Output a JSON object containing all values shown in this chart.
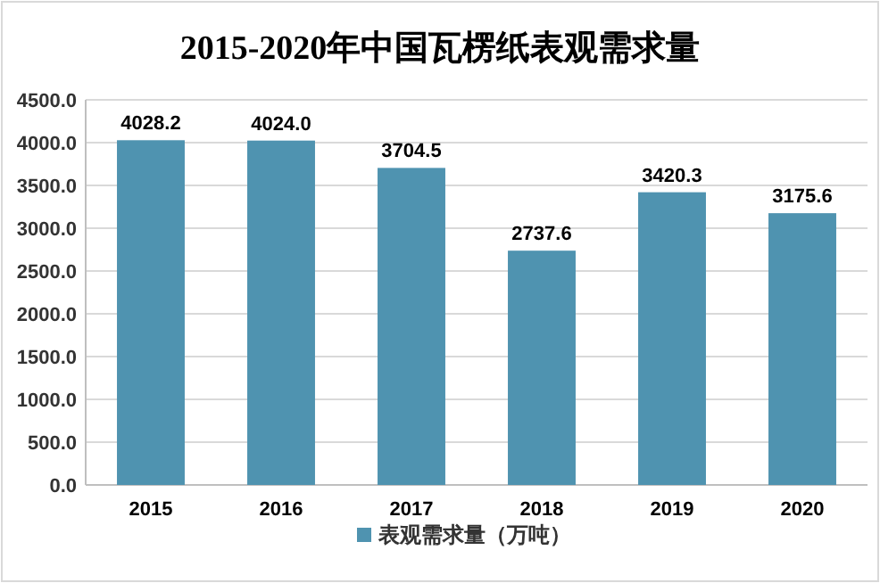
{
  "chart_data": {
    "type": "bar",
    "title": "2015-2020年中国瓦楞纸表观需求量",
    "categories": [
      "2015",
      "2016",
      "2017",
      "2018",
      "2019",
      "2020"
    ],
    "series": [
      {
        "name": "表观需求量（万吨）",
        "color": "#4f93b0",
        "values": [
          4028.2,
          4024.0,
          3704.5,
          2737.6,
          3420.3,
          3175.6
        ]
      }
    ],
    "value_labels": [
      "4028.2",
      "4024.0",
      "3704.5",
      "2737.6",
      "3420.3",
      "3175.6"
    ],
    "ylim": [
      0,
      4500
    ],
    "yticks": [
      {
        "value": 0,
        "label": "0.0"
      },
      {
        "value": 500,
        "label": "500.0"
      },
      {
        "value": 1000,
        "label": "1000.0"
      },
      {
        "value": 1500,
        "label": "1500.0"
      },
      {
        "value": 2000,
        "label": "2000.0"
      },
      {
        "value": 2500,
        "label": "2500.0"
      },
      {
        "value": 3000,
        "label": "3000.0"
      },
      {
        "value": 3500,
        "label": "3500.0"
      },
      {
        "value": 4000,
        "label": "4000.0"
      },
      {
        "value": 4500,
        "label": "4500.0"
      }
    ],
    "grid": "y",
    "legend": "bottom"
  }
}
